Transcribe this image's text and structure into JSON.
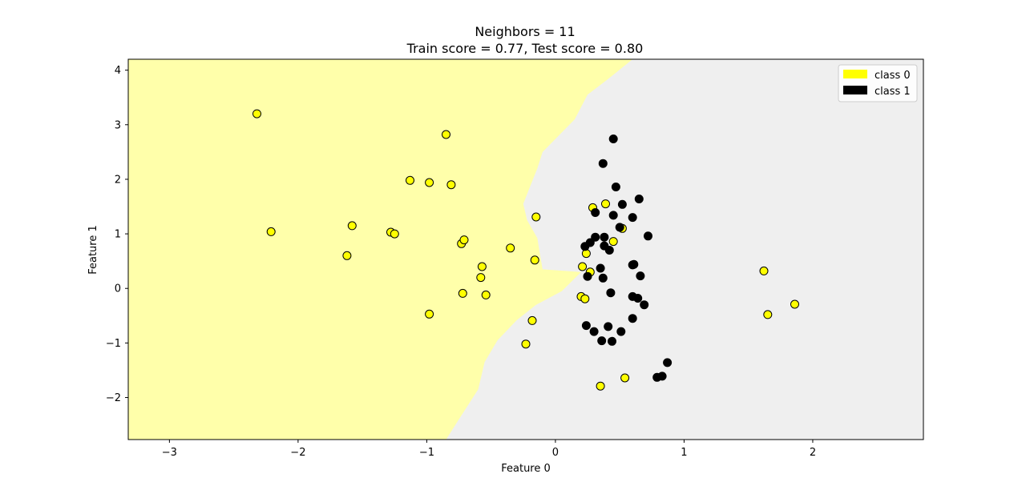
{
  "chart_data": {
    "type": "scatter",
    "title_line1": "Neighbors = 11",
    "title_line2": "Train score = 0.77, Test score = 0.80",
    "xlabel": "Feature 0",
    "ylabel": "Feature 1",
    "xlim": [
      -3.32,
      2.86
    ],
    "ylim": [
      -2.77,
      4.2
    ],
    "xticks": [
      {
        "value": -3,
        "label": "−3"
      },
      {
        "value": -2,
        "label": "−2"
      },
      {
        "value": -1,
        "label": "−1"
      },
      {
        "value": 0,
        "label": "0"
      },
      {
        "value": 1,
        "label": "1"
      },
      {
        "value": 2,
        "label": "2"
      }
    ],
    "yticks": [
      {
        "value": -2,
        "label": "−2"
      },
      {
        "value": -1,
        "label": "−1"
      },
      {
        "value": 0,
        "label": "0"
      },
      {
        "value": 1,
        "label": "1"
      },
      {
        "value": 2,
        "label": "2"
      },
      {
        "value": 3,
        "label": "3"
      },
      {
        "value": 4,
        "label": "4"
      }
    ],
    "grid": false,
    "legend_position": "top-right",
    "legend": [
      {
        "label": "class 0",
        "color": "#ffff00"
      },
      {
        "label": "class 1",
        "color": "#000000"
      }
    ],
    "region_colors": {
      "class_0": "#ffffaa",
      "class_1": "#efefef"
    },
    "decision_boundary": [
      [
        0.6,
        4.2
      ],
      [
        0.4,
        3.82
      ],
      [
        0.25,
        3.55
      ],
      [
        0.15,
        3.1
      ],
      [
        -0.1,
        2.5
      ],
      [
        -0.14,
        2.2
      ],
      [
        -0.2,
        1.85
      ],
      [
        -0.25,
        1.55
      ],
      [
        -0.22,
        1.25
      ],
      [
        -0.14,
        0.92
      ],
      [
        -0.12,
        0.62
      ],
      [
        -0.1,
        0.35
      ],
      [
        0.2,
        0.3
      ],
      [
        0.05,
        -0.05
      ],
      [
        -0.15,
        -0.3
      ],
      [
        -0.3,
        -0.58
      ],
      [
        -0.45,
        -0.95
      ],
      [
        -0.55,
        -1.35
      ],
      [
        -0.6,
        -1.85
      ],
      [
        -0.75,
        -2.4
      ],
      [
        -0.85,
        -2.77
      ]
    ],
    "series": [
      {
        "name": "class 0",
        "color": "#ffff00",
        "points": [
          [
            -2.32,
            3.2
          ],
          [
            -0.85,
            2.82
          ],
          [
            -1.13,
            1.98
          ],
          [
            -0.98,
            1.94
          ],
          [
            -0.81,
            1.9
          ],
          [
            -2.21,
            1.04
          ],
          [
            -1.58,
            1.15
          ],
          [
            -1.28,
            1.03
          ],
          [
            -1.25,
            1.0
          ],
          [
            -0.73,
            0.82
          ],
          [
            -0.71,
            0.89
          ],
          [
            -0.35,
            0.74
          ],
          [
            -1.62,
            0.6
          ],
          [
            -0.57,
            0.4
          ],
          [
            -0.16,
            0.52
          ],
          [
            -0.58,
            0.2
          ],
          [
            -0.72,
            -0.09
          ],
          [
            -0.54,
            -0.12
          ],
          [
            -0.98,
            -0.47
          ],
          [
            -0.18,
            -0.59
          ],
          [
            -0.23,
            -1.02
          ],
          [
            -0.15,
            1.31
          ],
          [
            0.29,
            1.48
          ],
          [
            0.39,
            1.55
          ],
          [
            0.52,
            1.1
          ],
          [
            0.45,
            0.86
          ],
          [
            0.24,
            0.64
          ],
          [
            0.21,
            0.4
          ],
          [
            0.27,
            0.3
          ],
          [
            0.2,
            -0.15
          ],
          [
            0.23,
            -0.19
          ],
          [
            0.54,
            -1.64
          ],
          [
            0.35,
            -1.79
          ],
          [
            1.62,
            0.32
          ],
          [
            1.65,
            -0.48
          ],
          [
            1.86,
            -0.29
          ]
        ]
      },
      {
        "name": "class 1",
        "color": "#000000",
        "points": [
          [
            0.45,
            2.74
          ],
          [
            0.37,
            2.29
          ],
          [
            0.47,
            1.86
          ],
          [
            0.65,
            1.64
          ],
          [
            0.52,
            1.54
          ],
          [
            0.31,
            1.39
          ],
          [
            0.45,
            1.34
          ],
          [
            0.6,
            1.3
          ],
          [
            0.5,
            1.12
          ],
          [
            0.72,
            0.96
          ],
          [
            0.38,
            0.94
          ],
          [
            0.31,
            0.94
          ],
          [
            0.27,
            0.84
          ],
          [
            0.23,
            0.77
          ],
          [
            0.38,
            0.78
          ],
          [
            0.42,
            0.7
          ],
          [
            0.6,
            0.43
          ],
          [
            0.61,
            0.44
          ],
          [
            0.35,
            0.37
          ],
          [
            0.25,
            0.22
          ],
          [
            0.37,
            0.19
          ],
          [
            0.66,
            0.23
          ],
          [
            0.43,
            -0.08
          ],
          [
            0.6,
            -0.15
          ],
          [
            0.64,
            -0.18
          ],
          [
            0.69,
            -0.3
          ],
          [
            0.6,
            -0.55
          ],
          [
            0.24,
            -0.68
          ],
          [
            0.41,
            -0.7
          ],
          [
            0.3,
            -0.79
          ],
          [
            0.51,
            -0.79
          ],
          [
            0.36,
            -0.96
          ],
          [
            0.44,
            -0.97
          ],
          [
            0.87,
            -1.36
          ],
          [
            0.83,
            -1.61
          ],
          [
            0.79,
            -1.63
          ]
        ]
      }
    ]
  }
}
